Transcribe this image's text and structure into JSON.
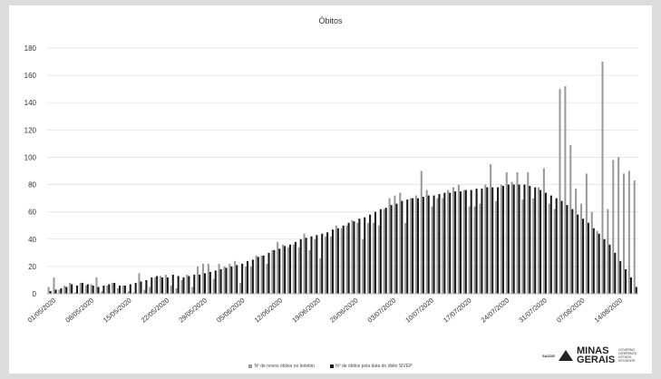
{
  "chart_data": {
    "type": "bar",
    "title": "Óbitos",
    "ylim": [
      0,
      180
    ],
    "yticks": [
      0,
      20,
      40,
      60,
      80,
      100,
      120,
      140,
      160,
      180
    ],
    "grid": true,
    "legend_position": "bottom",
    "x_tick_labels": [
      "01/05/2020",
      "08/05/2020",
      "15/05/2020",
      "22/05/2020",
      "29/05/2020",
      "05/06/2020",
      "12/06/2020",
      "19/06/2020",
      "26/06/2020",
      "03/07/2020",
      "10/07/2020",
      "17/07/2020",
      "24/07/2020",
      "31/07/2020",
      "07/08/2020",
      "14/08/2020"
    ],
    "series": [
      {
        "name": "Nº de novos óbitos no boletim",
        "color": "#9a9a9a",
        "values": [
          5,
          12,
          3,
          6,
          8,
          1,
          8,
          6,
          7,
          12,
          2,
          6,
          8,
          4,
          6,
          2,
          1,
          15,
          3,
          5,
          12,
          13,
          14,
          6,
          4,
          10,
          14,
          5,
          20,
          22,
          22,
          11,
          22,
          20,
          22,
          24,
          8,
          20,
          20,
          28,
          28,
          22,
          32,
          38,
          36,
          34,
          36,
          34,
          44,
          32,
          40,
          26,
          42,
          42,
          50,
          48,
          50,
          54,
          52,
          40,
          52,
          52,
          50,
          62,
          70,
          72,
          74,
          52,
          70,
          72,
          90,
          76,
          64,
          70,
          70,
          76,
          78,
          80,
          76,
          64,
          64,
          66,
          80,
          95,
          68,
          80,
          89,
          82,
          89,
          69,
          89,
          70,
          78,
          92,
          66,
          62,
          150,
          152,
          109,
          77,
          66,
          88,
          60,
          46,
          170,
          62,
          98,
          100,
          88,
          90,
          83
        ],
        "gray_values": [
          5,
          12,
          3,
          6,
          8,
          1,
          8,
          6,
          7,
          12,
          2,
          6,
          8,
          4,
          6,
          2,
          1,
          15,
          3,
          5,
          12,
          13,
          14,
          6,
          4,
          10,
          14,
          5,
          20,
          22,
          22,
          11,
          22,
          20,
          22,
          24,
          8,
          20,
          20,
          28,
          28,
          22,
          32,
          38,
          36,
          34,
          36,
          34,
          44,
          32,
          40,
          26,
          42,
          42,
          50,
          48,
          50,
          54,
          52,
          40,
          52,
          52,
          50,
          62,
          70,
          72,
          74,
          52,
          70,
          72,
          90,
          76,
          64,
          70,
          70,
          76,
          78,
          80,
          76,
          64,
          64,
          66,
          80,
          95,
          68,
          80,
          89,
          82,
          89,
          69,
          89,
          70,
          78,
          92,
          66,
          62,
          150,
          152,
          109,
          77,
          66,
          88,
          60,
          46,
          170,
          62,
          98,
          100,
          88,
          90,
          83
        ]
      },
      {
        "name": "Nº de óbitos pela data do óbito SIVEP",
        "color": "#1a1a1a",
        "values": [
          2,
          3,
          4,
          5,
          7,
          6,
          8,
          7,
          6,
          5,
          6,
          7,
          8,
          6,
          6,
          7,
          8,
          9,
          10,
          12,
          13,
          12,
          12,
          14,
          13,
          12,
          13,
          14,
          14,
          15,
          16,
          17,
          18,
          19,
          20,
          21,
          22,
          24,
          25,
          27,
          28,
          30,
          32,
          33,
          35,
          36,
          38,
          40,
          41,
          42,
          43,
          44,
          45,
          47,
          48,
          50,
          52,
          53,
          55,
          56,
          58,
          60,
          62,
          63,
          65,
          66,
          68,
          69,
          70,
          70,
          71,
          72,
          72,
          73,
          74,
          74,
          75,
          75,
          76,
          76,
          77,
          77,
          78,
          78,
          78,
          79,
          80,
          80,
          80,
          80,
          79,
          78,
          76,
          74,
          72,
          70,
          68,
          65,
          62,
          58,
          55,
          52,
          48,
          44,
          40,
          36,
          30,
          24,
          18,
          12,
          5
        ]
      }
    ]
  }
}
